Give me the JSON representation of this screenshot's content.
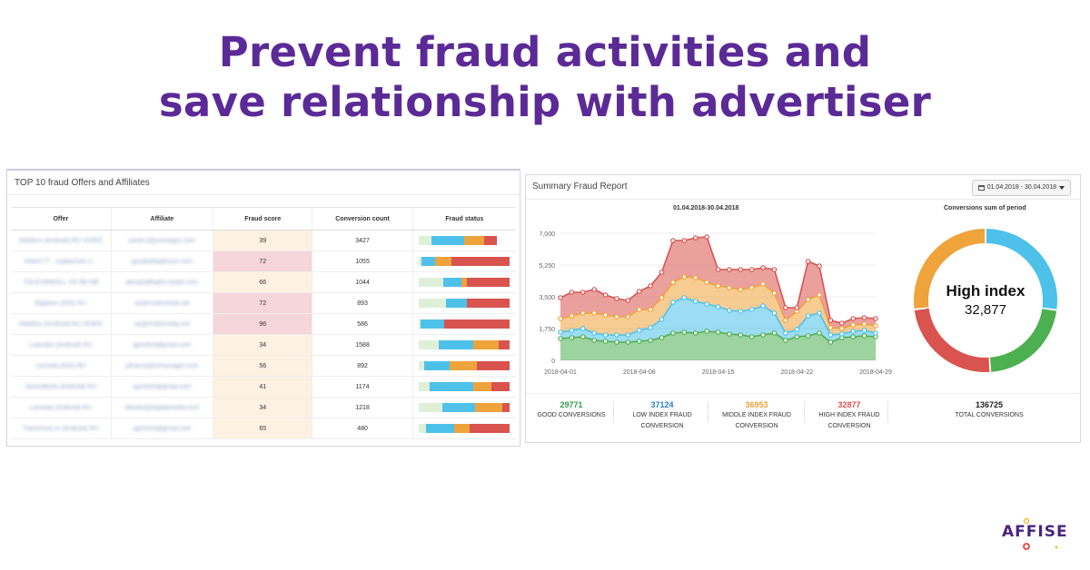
{
  "headline": {
    "line1": "Prevent fraud activities and",
    "line2": "save relationship with advertiser"
  },
  "left_panel": {
    "title": "TOP 10 fraud Offers and Affiliates",
    "columns": [
      "Offer",
      "Affiliate",
      "Fraud score",
      "Conversion count",
      "Fraud status"
    ],
    "rows": [
      {
        "offer": "Webbox (Android) RU VIDEO",
        "affiliate": "pavel.y@yourapps.com",
        "score": "39",
        "conversions": "3427",
        "level": "low",
        "status": [
          0.14,
          0.36,
          0.22,
          0.14
        ]
      },
      {
        "offer": "Hotel777 - сервисное (i...",
        "affiliate": "gus@adoptimize.com",
        "score": "72",
        "conversions": "1055",
        "level": "high",
        "status": [
          0.03,
          0.15,
          0.18,
          0.64
        ]
      },
      {
        "offer": "TOUCHNROLL VN RB RB",
        "affiliate": "alex@affiliates-leads.com",
        "score": "66",
        "conversions": "1044",
        "level": "low",
        "status": [
          0.27,
          0.2,
          0.06,
          0.47
        ]
      },
      {
        "offer": "Bigbaun (IOS) RU",
        "affiliate": "ao@mobimedia.net",
        "score": "72",
        "conversions": "893",
        "level": "high",
        "status": [
          0.3,
          0.23,
          0.0,
          0.47
        ]
      },
      {
        "offer": "Webbox (Android) RU VIDEO",
        "affiliate": "ao@mobimedia.net",
        "score": "96",
        "conversions": "586",
        "level": "high",
        "status": [
          0.02,
          0.26,
          0.0,
          0.72
        ]
      },
      {
        "offer": "Lalandia (Android) RU",
        "affiliate": "igorstrel@gmail.com",
        "score": "34",
        "conversions": "1588",
        "level": "low",
        "status": [
          0.22,
          0.38,
          0.28,
          0.12
        ]
      },
      {
        "offer": "Lamoda (IOS) RU",
        "affiliate": "johanna@mmanager.com",
        "score": "56",
        "conversions": "892",
        "level": "low",
        "status": [
          0.06,
          0.28,
          0.3,
          0.36
        ]
      },
      {
        "offer": "JamesBook (Android) RU",
        "affiliate": "igorstrel@gmail.com",
        "score": "41",
        "conversions": "1174",
        "level": "low",
        "status": [
          0.12,
          0.48,
          0.2,
          0.2
        ]
      },
      {
        "offer": "Lamoda (Android) RU",
        "affiliate": "kbooks@digitalmedia.com",
        "score": "34",
        "conversions": "1218",
        "level": "low",
        "status": [
          0.26,
          0.36,
          0.3,
          0.08
        ]
      },
      {
        "offer": "Trainoruss.ru (Android) RU",
        "affiliate": "igorstrel@gmail.com",
        "score": "65",
        "conversions": "480",
        "level": "low",
        "status": [
          0.08,
          0.31,
          0.17,
          0.44
        ]
      }
    ]
  },
  "right_panel": {
    "title": "Summary Fraud Report",
    "date_range": "01.04.2018 - 30.04.2018",
    "area_chart_title": "01.04.2018-30.04.2018",
    "donut_title": "Conversions sum of period",
    "donut_label": "High index",
    "donut_value": "32,877",
    "stats": [
      {
        "value": "29771",
        "label1": "GOOD CONVERSIONS",
        "label2": "",
        "color": "#2e9e4f"
      },
      {
        "value": "37124",
        "label1": "LOW INDEX FRAUD",
        "label2": "CONVERSION",
        "color": "#2a7fc0"
      },
      {
        "value": "36953",
        "label1": "MIDDLE INDEX FRAUD",
        "label2": "CONVERSION",
        "color": "#e8a33a"
      },
      {
        "value": "32877",
        "label1": "HIGH INDEX FRAUD",
        "label2": "CONVERSION",
        "color": "#d9534f"
      },
      {
        "value": "136725",
        "label1": "TOTAL CONVERSIONS",
        "label2": "",
        "color": "#222222"
      }
    ]
  },
  "colors": {
    "good": "#4caf50",
    "low": "#4dc1ea",
    "middle": "#eea33b",
    "high": "#d9534f",
    "light_green": "#dff0d8",
    "brand": "#5b2a96"
  },
  "chart_data": [
    {
      "type": "area",
      "title": "01.04.2018-30.04.2018",
      "stacked": true,
      "x": [
        "2018-04-01",
        "2018-04-02",
        "2018-04-03",
        "2018-04-04",
        "2018-04-05",
        "2018-04-06",
        "2018-04-07",
        "2018-04-08",
        "2018-04-09",
        "2018-04-10",
        "2018-04-11",
        "2018-04-12",
        "2018-04-13",
        "2018-04-14",
        "2018-04-15",
        "2018-04-16",
        "2018-04-17",
        "2018-04-18",
        "2018-04-19",
        "2018-04-20",
        "2018-04-21",
        "2018-04-22",
        "2018-04-23",
        "2018-04-24",
        "2018-04-25",
        "2018-04-26",
        "2018-04-27",
        "2018-04-28",
        "2018-04-29"
      ],
      "xticks": [
        "2018-04-01",
        "2018-04-08",
        "2018-04-15",
        "2018-04-22",
        "2018-04-29"
      ],
      "yticks": [
        0,
        1750,
        3500,
        5250,
        7000
      ],
      "ytick_labels": [
        "0",
        "1,750",
        "3,500",
        "5,250",
        "7,000"
      ],
      "ylim": [
        0,
        7000
      ],
      "series": [
        {
          "values": [
            1200,
            1250,
            1300,
            1100,
            1050,
            1000,
            1000,
            1050,
            1100,
            1250,
            1500,
            1550,
            1500,
            1600,
            1550,
            1450,
            1400,
            1300,
            1400,
            1500,
            1100,
            1300,
            1350,
            1500,
            1000,
            1250,
            1300,
            1350,
            1300
          ],
          "color": "#4caf50"
        },
        {
          "values": [
            350,
            400,
            450,
            400,
            350,
            400,
            400,
            600,
            700,
            1000,
            1700,
            1900,
            1750,
            1500,
            1400,
            1300,
            1300,
            1500,
            1600,
            1100,
            400,
            400,
            1100,
            1100,
            400,
            200,
            300,
            300,
            200
          ],
          "color": "#4dc1ea"
        },
        {
          "values": [
            750,
            800,
            850,
            1100,
            1100,
            1000,
            1000,
            1150,
            1000,
            1200,
            1100,
            1150,
            1300,
            1200,
            1150,
            1250,
            1200,
            1200,
            1200,
            1100,
            700,
            1000,
            900,
            1000,
            400,
            300,
            350,
            350,
            400
          ],
          "color": "#eea33b"
        },
        {
          "values": [
            1150,
            1300,
            1150,
            1300,
            1100,
            1000,
            900,
            1000,
            1300,
            1400,
            2300,
            2000,
            2200,
            2500,
            900,
            1000,
            1100,
            1000,
            900,
            1300,
            700,
            200,
            2100,
            1600,
            400,
            300,
            350,
            350,
            400
          ],
          "color": "#d9534f"
        }
      ]
    },
    {
      "type": "pie",
      "title": "Conversions sum of period",
      "labels": [
        "GOOD CONVERSIONS",
        "LOW INDEX FRAUD CONVERSION",
        "MIDDLE INDEX FRAUD CONVERSION",
        "HIGH INDEX FRAUD CONVERSION"
      ],
      "values": [
        29771,
        37124,
        36953,
        32877
      ],
      "colors": [
        "#4caf50",
        "#4dc1ea",
        "#eea33b",
        "#d9534f"
      ]
    }
  ]
}
